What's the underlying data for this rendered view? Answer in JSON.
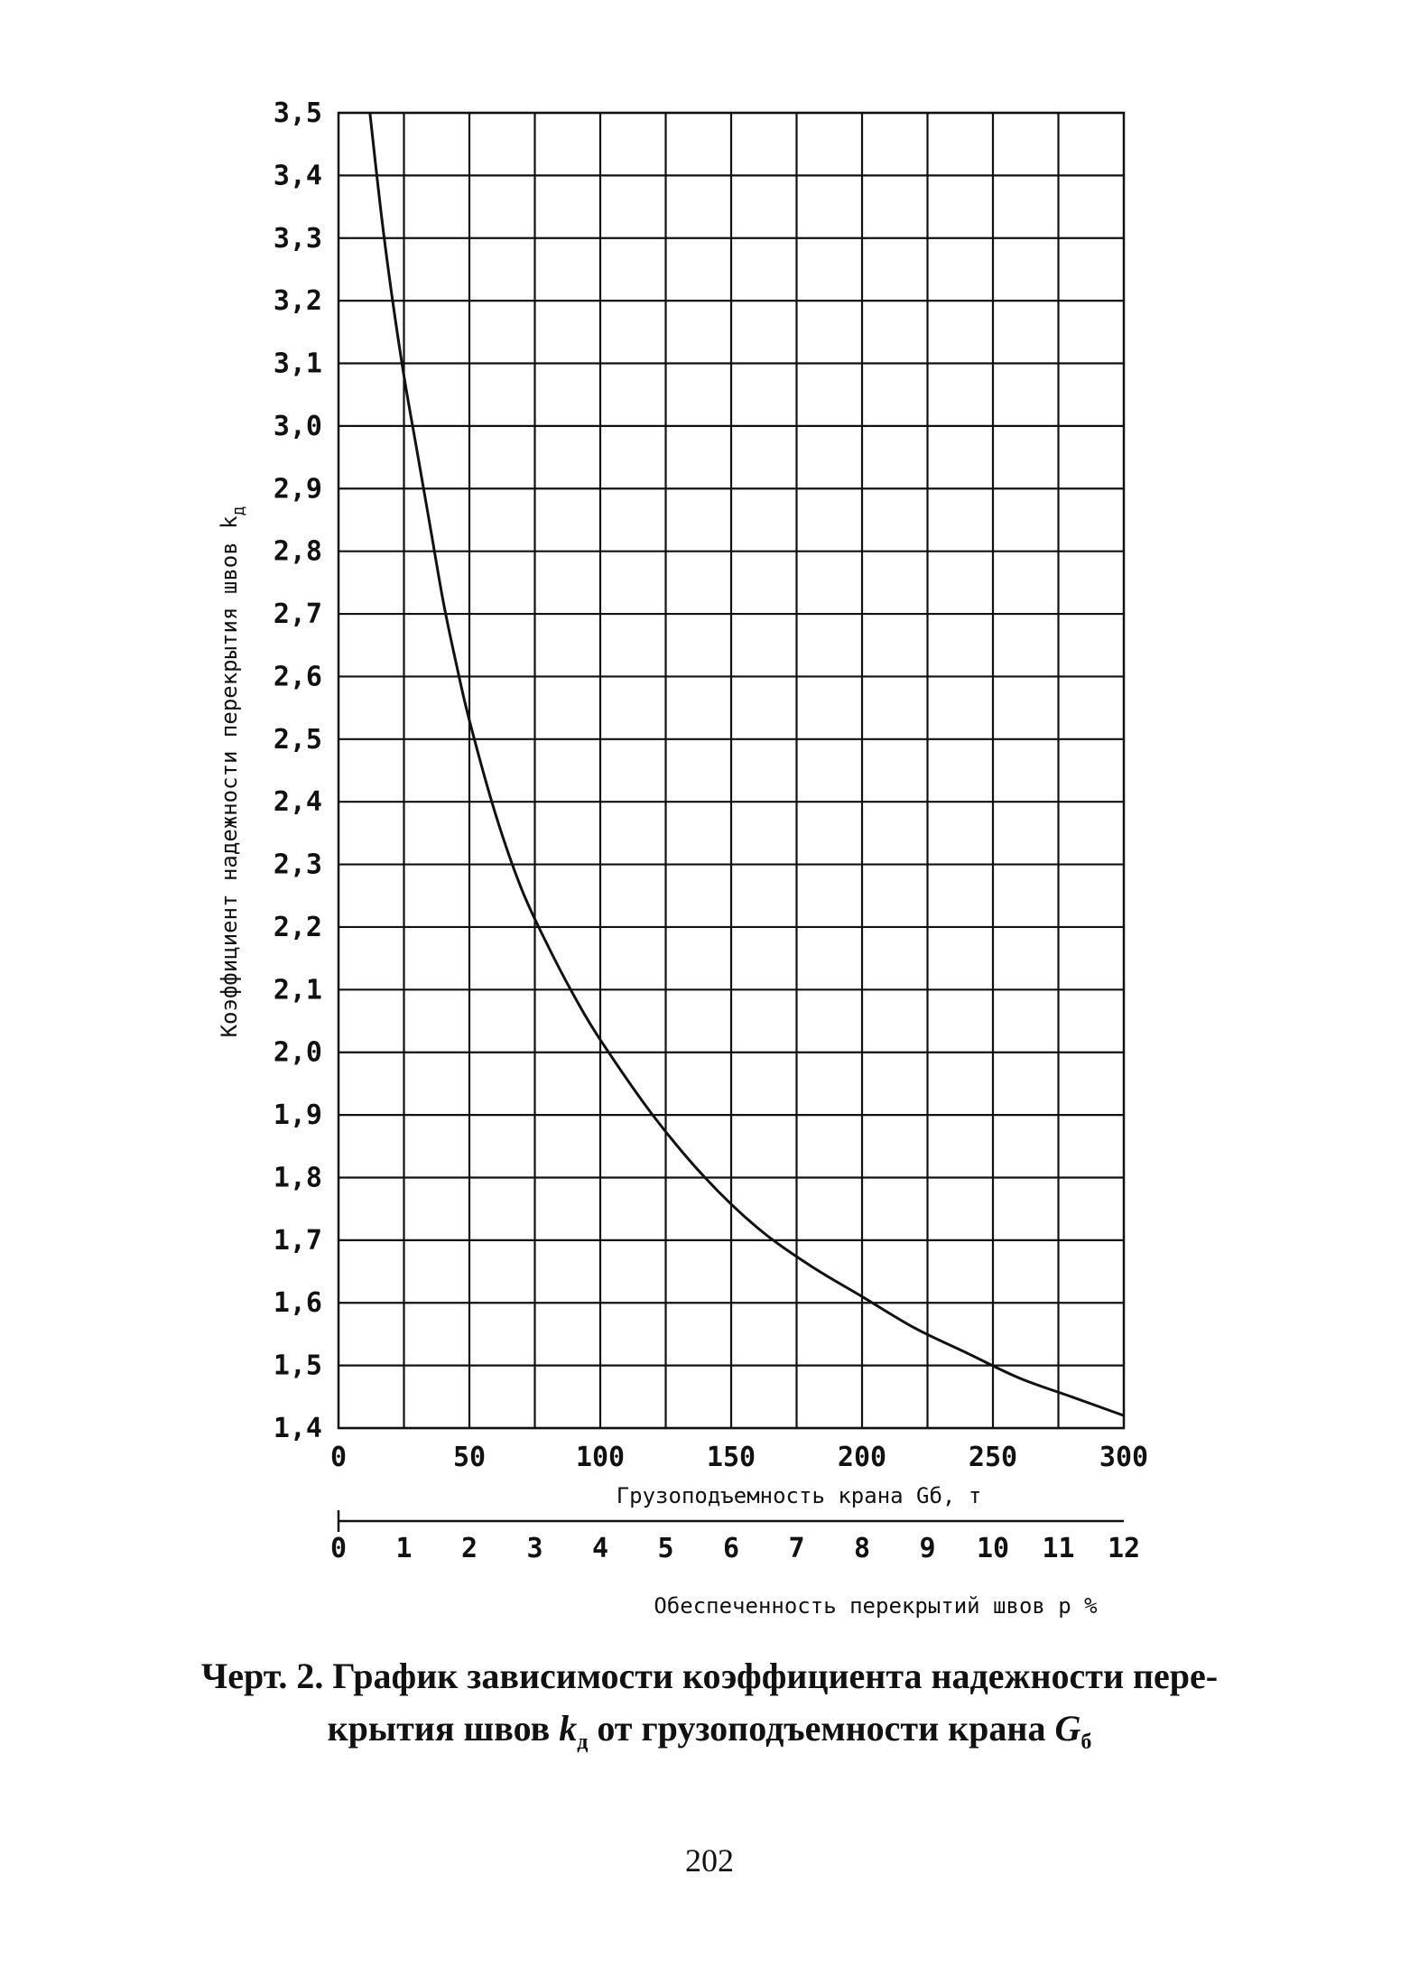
{
  "chart_data": {
    "type": "line",
    "ylabel": "Коэффициент надежности перекрытия швов k",
    "ylabel_symbol": "k",
    "ylabel_subscript": "д",
    "xlabel": "Грузоподъемность крана Gб, т",
    "x2label": "Обеспеченность перекрытий швов p %",
    "xlim": [
      0,
      300
    ],
    "ylim": [
      1.4,
      3.5
    ],
    "x_ticks": [
      "0",
      "50",
      "100",
      "150",
      "200",
      "250",
      "300"
    ],
    "x2_ticks": [
      "0",
      "1",
      "2",
      "3",
      "4",
      "5",
      "6",
      "7",
      "8",
      "9",
      "10",
      "11",
      "12"
    ],
    "y_ticks": [
      "1,4",
      "1,5",
      "1,6",
      "1,7",
      "1,8",
      "1,9",
      "2,0",
      "2,1",
      "2,2",
      "2,3",
      "2,4",
      "2,5",
      "2,6",
      "2,7",
      "2,8",
      "2,9",
      "3,0",
      "3,1",
      "3,2",
      "3,3",
      "3,4",
      "3,5"
    ],
    "grid": true,
    "series": [
      {
        "x": [
          12,
          16,
          20,
          25,
          30,
          35,
          40,
          45,
          50,
          60,
          70,
          80,
          90,
          100,
          120,
          140,
          160,
          180,
          200,
          220,
          240,
          260,
          280,
          300
        ],
        "y": [
          3.5,
          3.35,
          3.22,
          3.08,
          2.96,
          2.84,
          2.72,
          2.62,
          2.53,
          2.38,
          2.26,
          2.17,
          2.09,
          2.02,
          1.9,
          1.8,
          1.72,
          1.66,
          1.61,
          1.56,
          1.52,
          1.48,
          1.45,
          1.42
        ]
      }
    ]
  },
  "caption": {
    "line1": "Черт. 2. График зависимости коэффициента надежности пере-",
    "line2_prefix": "крытия швов ",
    "symbol_k": "k",
    "subscript_k": "д",
    "line2_middle": " от грузоподъемности крана ",
    "symbol_g": "G",
    "subscript_g": "б"
  },
  "page_number": "202"
}
